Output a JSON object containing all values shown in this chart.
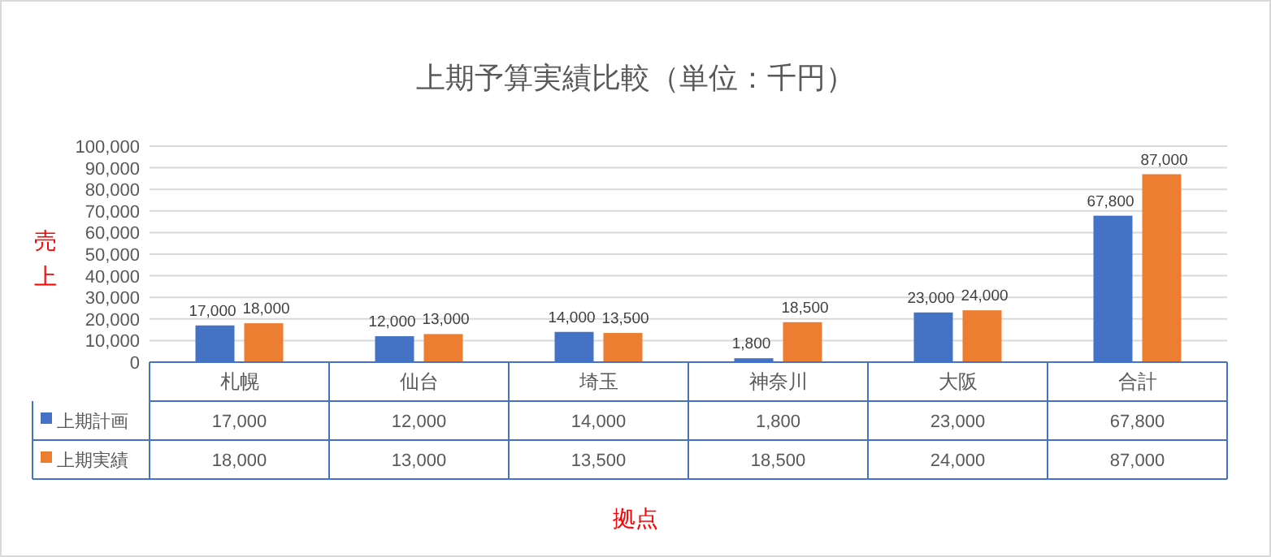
{
  "chart_data": {
    "type": "bar",
    "title": "上期予算実績比較（単位：千円）",
    "xlabel": "拠点",
    "ylabel": "売上",
    "categories": [
      "札幌",
      "仙台",
      "埼玉",
      "神奈川",
      "大阪",
      "合計"
    ],
    "series": [
      {
        "name": "上期計画",
        "color": "#4472c4",
        "values": [
          17000,
          12000,
          14000,
          1800,
          23000,
          67800
        ],
        "value_labels": [
          "17,000",
          "12,000",
          "14,000",
          "1,800",
          "23,000",
          "67,800"
        ]
      },
      {
        "name": "上期実績",
        "color": "#ed7d31",
        "values": [
          18000,
          13000,
          13500,
          18500,
          24000,
          87000
        ],
        "value_labels": [
          "18,000",
          "13,000",
          "13,500",
          "18,500",
          "24,000",
          "87,000"
        ]
      }
    ],
    "ylim": [
      0,
      100000
    ],
    "yticks": [
      {
        "value": 0,
        "label": "0"
      },
      {
        "value": 10000,
        "label": "10,000"
      },
      {
        "value": 20000,
        "label": "20,000"
      },
      {
        "value": 30000,
        "label": "30,000"
      },
      {
        "value": 40000,
        "label": "40,000"
      },
      {
        "value": 50000,
        "label": "50,000"
      },
      {
        "value": 60000,
        "label": "60,000"
      },
      {
        "value": 70000,
        "label": "70,000"
      },
      {
        "value": 80000,
        "label": "80,000"
      },
      {
        "value": 90000,
        "label": "90,000"
      },
      {
        "value": 100000,
        "label": "100,000"
      }
    ],
    "grid": "y",
    "legend": "bottom"
  }
}
